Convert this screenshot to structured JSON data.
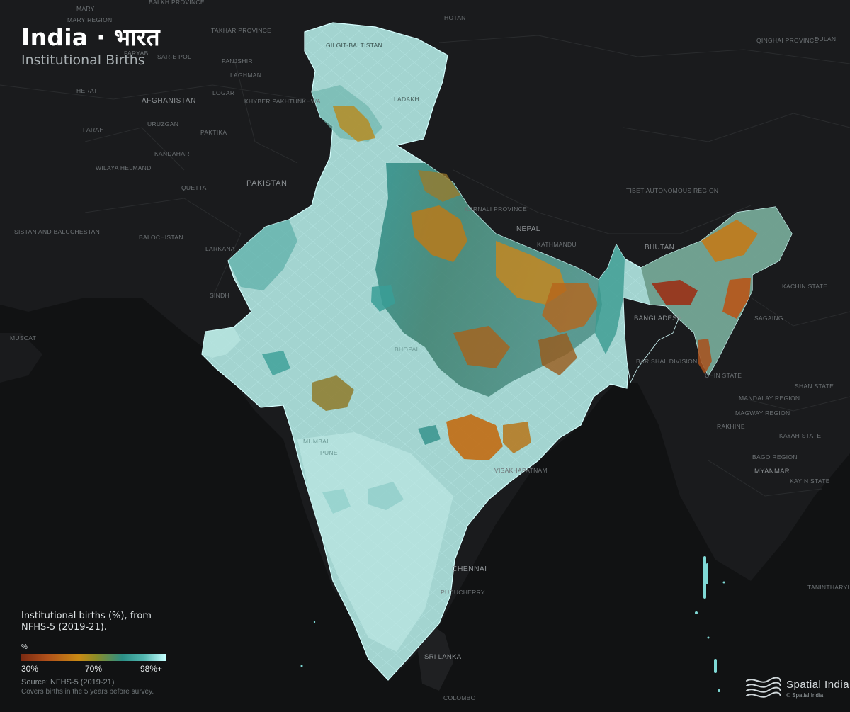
{
  "header": {
    "title": "India · भारत",
    "subtitle": "Institutional Births"
  },
  "places": [
    {
      "name": "MARY",
      "key": "mary"
    },
    {
      "name": "MARY REGION",
      "key": "mary-region"
    },
    {
      "name": "BALKH PROVINCE",
      "key": "balkh"
    },
    {
      "name": "TAKHAR PROVINCE",
      "key": "takhar"
    },
    {
      "name": "FARYAB",
      "key": "faryab"
    },
    {
      "name": "SAR-E POL",
      "key": "sar-e-pol"
    },
    {
      "name": "PANJSHIR",
      "key": "panjshir"
    },
    {
      "name": "LAGHMAN",
      "key": "laghman"
    },
    {
      "name": "HERAT",
      "key": "herat"
    },
    {
      "name": "AFGHANISTAN",
      "key": "afghanistan"
    },
    {
      "name": "LOGAR",
      "key": "logar"
    },
    {
      "name": "KHYBER PAKHTUNKHWA",
      "key": "khyber"
    },
    {
      "name": "URUZGAN",
      "key": "uruzgan"
    },
    {
      "name": "FARAH",
      "key": "farah"
    },
    {
      "name": "PAKTIKA",
      "key": "paktika"
    },
    {
      "name": "KANDAHAR",
      "key": "kandahar"
    },
    {
      "name": "WILAYA HELMAND",
      "key": "helmand"
    },
    {
      "name": "PAKISTAN",
      "key": "pakistan"
    },
    {
      "name": "QUETTA",
      "key": "quetta"
    },
    {
      "name": "SISTAN AND BALUCHESTAN",
      "key": "sistan"
    },
    {
      "name": "BALOCHISTAN",
      "key": "balochistan"
    },
    {
      "name": "LARKANA",
      "key": "larkana"
    },
    {
      "name": "SINDH",
      "key": "sindh"
    },
    {
      "name": "MUSCAT",
      "key": "muscat"
    },
    {
      "name": "HOTAN",
      "key": "hotan"
    },
    {
      "name": "QINGHAI PROVINCE",
      "key": "qinghai"
    },
    {
      "name": "DULAN",
      "key": "dulan"
    },
    {
      "name": "GILGIT-BALTISTAN",
      "key": "gilgit"
    },
    {
      "name": "LADAKH",
      "key": "ladakh"
    },
    {
      "name": "KARNALI PROVINCE",
      "key": "karnali"
    },
    {
      "name": "TIBET AUTONOMOUS REGION",
      "key": "tibet"
    },
    {
      "name": "NEPAL",
      "key": "nepal"
    },
    {
      "name": "KATHMANDU",
      "key": "kathmandu"
    },
    {
      "name": "BHUTAN",
      "key": "bhutan"
    },
    {
      "name": "KACHIN STATE",
      "key": "kachin"
    },
    {
      "name": "SAGAING",
      "key": "sagaing"
    },
    {
      "name": "BANGLADESH",
      "key": "bangladesh"
    },
    {
      "name": "BARISHAL DIVISION",
      "key": "barishal"
    },
    {
      "name": "SHAN STATE",
      "key": "shan"
    },
    {
      "name": "MANDALAY REGION",
      "key": "mandalay"
    },
    {
      "name": "MAGWAY REGION",
      "key": "magway"
    },
    {
      "name": "RAKHINE",
      "key": "rakhine"
    },
    {
      "name": "KAYAH STATE",
      "key": "kayah"
    },
    {
      "name": "BAGO REGION",
      "key": "bago"
    },
    {
      "name": "MYANMAR",
      "key": "myanmar"
    },
    {
      "name": "KAYIN STATE",
      "key": "kayin"
    },
    {
      "name": "TANINTHARYI",
      "key": "tanintharyi"
    },
    {
      "name": "VISAKHAPATNAM",
      "key": "visakhapatnam"
    },
    {
      "name": "CHENNAI",
      "key": "chennai"
    },
    {
      "name": "PUDUCHERRY",
      "key": "puducherry"
    },
    {
      "name": "SRI LANKA",
      "key": "sri-lanka"
    },
    {
      "name": "COLOMBO",
      "key": "colombo"
    },
    {
      "name": "MUMBAI",
      "key": "mumbai"
    },
    {
      "name": "PUNE",
      "key": "pune"
    },
    {
      "name": "BHOPAL",
      "key": "bhopal"
    },
    {
      "name": "CHIN STATE",
      "key": "chin"
    }
  ],
  "legend": {
    "description": "Institutional births (%), from NFHS-5 (2019-21).",
    "unit": "%",
    "ticks": [
      "30%",
      "70%",
      "98%+"
    ],
    "scale": [
      {
        "value": 30,
        "color": "#7a2a12"
      },
      {
        "value": 50,
        "color": "#c98a14"
      },
      {
        "value": 70,
        "color": "#2b8f86"
      },
      {
        "value": 98,
        "color": "#c6ffff"
      }
    ],
    "source": "Source: NFHS-5 (2019-21)",
    "note": "Covers births in the 5 years before survey."
  },
  "brand": {
    "name": "Spatial India",
    "copyright": "© Spatial India"
  }
}
